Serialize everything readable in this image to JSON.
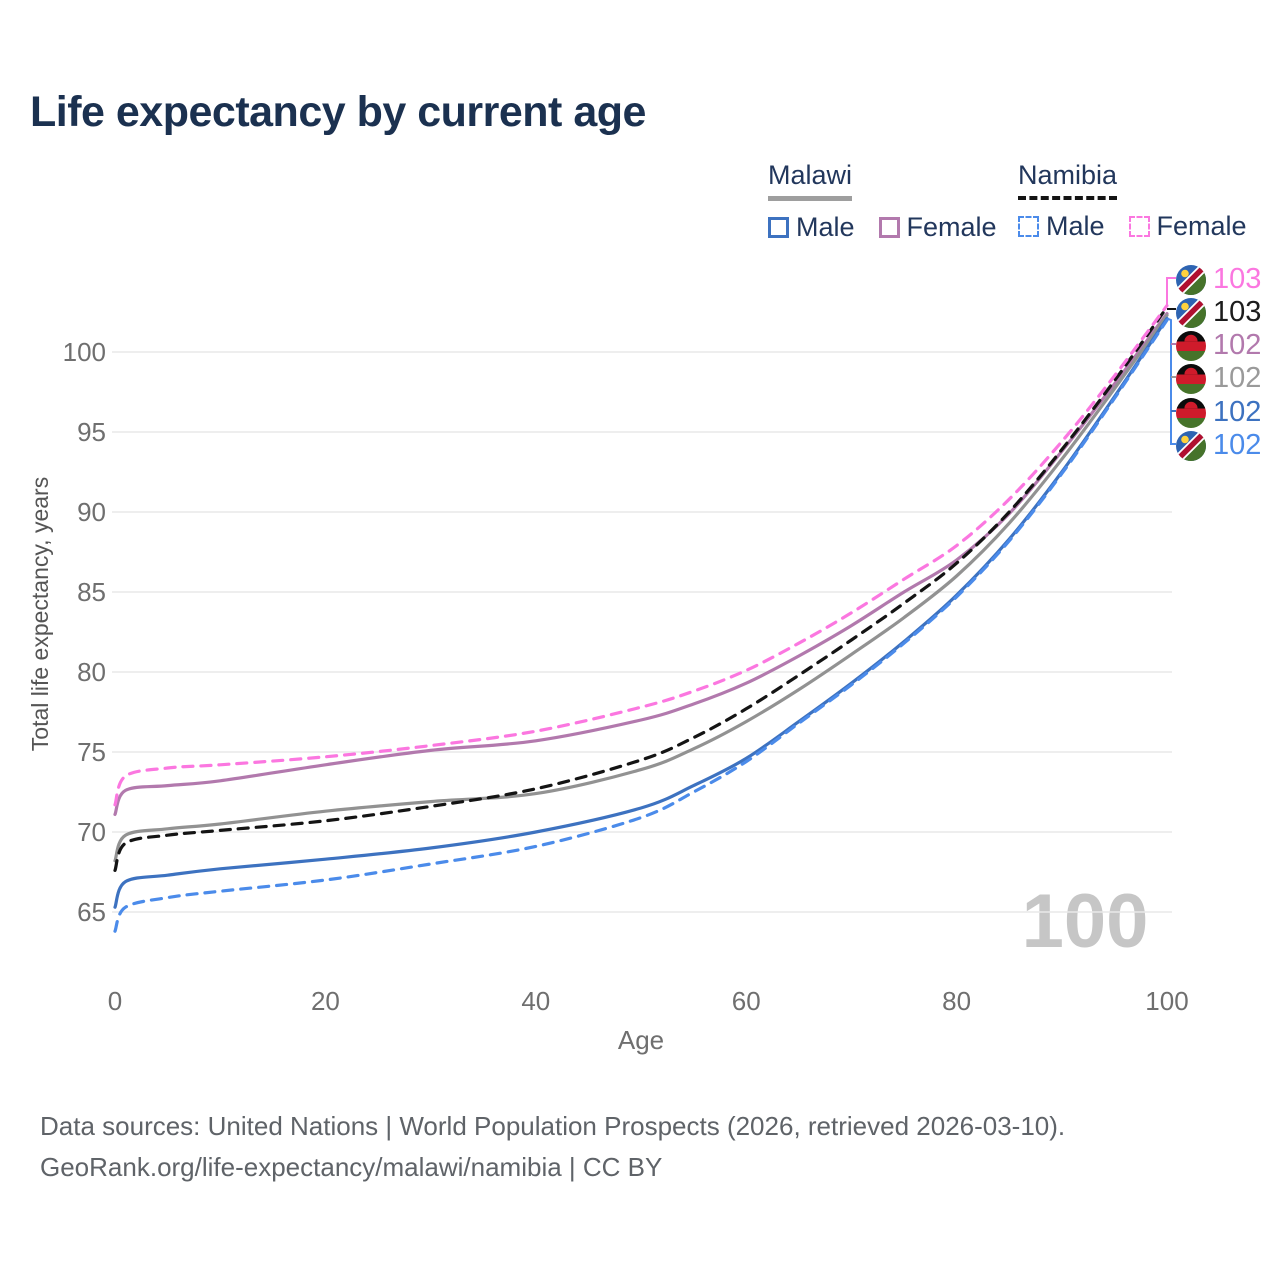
{
  "title": "Life expectancy by current age",
  "legend": {
    "groups": [
      {
        "name": "Malawi",
        "line_style": "solid",
        "underline_color": "#9e9e9e",
        "items": [
          {
            "label": "Male",
            "color": "#3d72c0"
          },
          {
            "label": "Female",
            "color": "#b279ad"
          }
        ]
      },
      {
        "name": "Namibia",
        "line_style": "dashed",
        "underline_color": "#141414",
        "items": [
          {
            "label": "Male",
            "color": "#4b8bea"
          },
          {
            "label": "Female",
            "color": "#fb77e0"
          }
        ]
      }
    ]
  },
  "chart_data": {
    "type": "line",
    "title": "Life expectancy by current age",
    "xlabel": "Age",
    "ylabel": "Total life expectancy, years",
    "xticks": [
      0,
      20,
      40,
      60,
      80,
      100
    ],
    "yticks": [
      65,
      70,
      75,
      80,
      85,
      90,
      95,
      100
    ],
    "xlim": [
      0,
      100
    ],
    "ylim": [
      63,
      104
    ],
    "grid": true,
    "legend_position": "top-right",
    "watermark": "100",
    "x": [
      0,
      1,
      5,
      10,
      20,
      30,
      40,
      50,
      55,
      60,
      65,
      70,
      75,
      80,
      85,
      90,
      95,
      100
    ],
    "series": [
      {
        "name": "Malawi Female",
        "country": "Malawi",
        "sex": "Female",
        "style": "solid",
        "color": "#b279ad",
        "values": [
          71.1,
          72.6,
          72.9,
          73.2,
          74.2,
          75.1,
          75.7,
          77.0,
          78.0,
          79.3,
          81.0,
          82.9,
          85.0,
          87.0,
          89.9,
          93.8,
          98.0,
          102.4
        ],
        "end_value": 102
      },
      {
        "name": "Malawi",
        "country": "Malawi",
        "sex": "Both",
        "style": "solid",
        "color": "#929292",
        "values": [
          68.2,
          69.8,
          70.2,
          70.5,
          71.3,
          71.9,
          72.4,
          73.9,
          75.2,
          76.9,
          78.9,
          81.1,
          83.4,
          86.0,
          89.3,
          93.3,
          97.7,
          102.3
        ],
        "end_value": 102
      },
      {
        "name": "Malawi Male",
        "country": "Malawi",
        "sex": "Male",
        "style": "solid",
        "color": "#3d72c0",
        "values": [
          65.3,
          66.9,
          67.3,
          67.7,
          68.3,
          69.0,
          70.0,
          71.5,
          72.9,
          74.6,
          76.9,
          79.3,
          81.9,
          84.8,
          88.3,
          92.5,
          97.2,
          102.1
        ],
        "end_value": 102
      },
      {
        "name": "Namibia",
        "country": "Namibia",
        "sex": "Both",
        "style": "dashed",
        "color": "#141414",
        "values": [
          67.6,
          69.3,
          69.8,
          70.1,
          70.7,
          71.6,
          72.7,
          74.5,
          75.9,
          77.7,
          79.8,
          82.0,
          84.3,
          86.8,
          90.0,
          93.9,
          98.2,
          102.8
        ],
        "end_value": 103
      },
      {
        "name": "Namibia Male",
        "country": "Namibia",
        "sex": "Male",
        "style": "dashed",
        "color": "#4b8bea",
        "values": [
          63.8,
          65.3,
          65.9,
          66.3,
          67.0,
          68.0,
          69.1,
          70.9,
          72.5,
          74.4,
          76.8,
          79.2,
          81.8,
          84.7,
          88.2,
          92.4,
          97.1,
          102.0
        ],
        "end_value": 102
      },
      {
        "name": "Namibia Female",
        "country": "Namibia",
        "sex": "Female",
        "style": "dashed",
        "color": "#fb77e0",
        "values": [
          71.7,
          73.5,
          74.0,
          74.2,
          74.7,
          75.4,
          76.3,
          77.8,
          78.8,
          80.1,
          81.8,
          83.7,
          85.8,
          87.9,
          90.8,
          94.4,
          98.5,
          102.9
        ],
        "end_value": 103
      }
    ]
  },
  "end_labels": [
    {
      "country": "Namibia",
      "value": "103",
      "color": "#fb77e0"
    },
    {
      "country": "Namibia",
      "value": "103",
      "color": "#1c1c1c"
    },
    {
      "country": "Malawi",
      "value": "102",
      "color": "#b279ad"
    },
    {
      "country": "Malawi",
      "value": "102",
      "color": "#9a9a9a"
    },
    {
      "country": "Malawi",
      "value": "102",
      "color": "#3d72c0"
    },
    {
      "country": "Namibia",
      "value": "102",
      "color": "#4b8bea"
    }
  ],
  "footer": {
    "line1": "Data sources: United Nations | World Population Prospects (2026, retrieved 2026-03-10).",
    "line2": "GeoRank.org/life-expectancy/malawi/namibia | CC BY"
  }
}
